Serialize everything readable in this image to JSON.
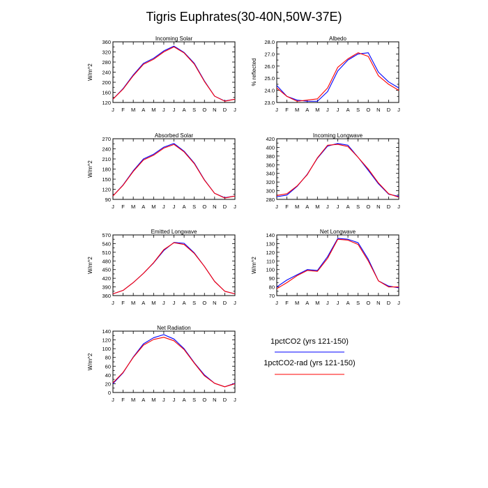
{
  "title": "Tigris Euphrates(30-40N,50W-37E)",
  "colors": {
    "series1": "#0000ff",
    "series2": "#ff0000"
  },
  "legend": {
    "placement": "bottom-right",
    "items": [
      {
        "label": "1pctCO2 (yrs 121-150)",
        "color": "#0000ff"
      },
      {
        "label": "1pctCO2-rad (yrs 121-150)",
        "color": "#ff0000"
      }
    ]
  },
  "chart_data": [
    {
      "type": "line",
      "title": "Incoming Solar",
      "xlabel": "",
      "ylabel": "W/m^2",
      "categories": [
        "J",
        "F",
        "M",
        "A",
        "M",
        "J",
        "J",
        "A",
        "S",
        "O",
        "N",
        "D",
        "J"
      ],
      "ylim": [
        120,
        360
      ],
      "yticks": [
        120,
        140,
        160,
        180,
        200,
        220,
        240,
        260,
        280,
        300,
        320,
        340,
        360
      ],
      "ytick_labels": [
        "120",
        "",
        "160",
        "",
        "200",
        "",
        "240",
        "",
        "280",
        "",
        "320",
        "",
        "360"
      ],
      "series": [
        {
          "values": [
            133,
            175,
            229,
            275,
            295,
            324,
            343,
            318,
            275,
            205,
            145,
            126,
            133
          ]
        },
        {
          "values": [
            133,
            173,
            226,
            271,
            291,
            320,
            340,
            316,
            272,
            203,
            145,
            125,
            133
          ]
        }
      ]
    },
    {
      "type": "line",
      "title": "Albedo",
      "xlabel": "",
      "ylabel": "% reflected",
      "categories": [
        "J",
        "F",
        "M",
        "A",
        "M",
        "J",
        "J",
        "A",
        "S",
        "O",
        "N",
        "D",
        "J"
      ],
      "ylim": [
        23.0,
        28.0
      ],
      "yticks": [
        23.0,
        23.5,
        24.0,
        24.5,
        25.0,
        25.5,
        26.0,
        26.5,
        27.0,
        27.5,
        28.0
      ],
      "ytick_labels": [
        "23.0",
        "",
        "24.0",
        "",
        "25.0",
        "",
        "26.0",
        "",
        "27.0",
        "",
        "28.0"
      ],
      "series": [
        {
          "values": [
            24.4,
            23.5,
            23.2,
            23.1,
            23.1,
            23.9,
            25.6,
            26.5,
            27.0,
            27.1,
            25.5,
            24.7,
            24.2
          ]
        },
        {
          "values": [
            24.2,
            23.5,
            23.1,
            23.2,
            23.3,
            24.2,
            25.9,
            26.6,
            27.1,
            26.8,
            25.2,
            24.5,
            24.0
          ]
        }
      ]
    },
    {
      "type": "line",
      "title": "Absorbed Solar",
      "xlabel": "",
      "ylabel": "W/m^2",
      "categories": [
        "J",
        "F",
        "M",
        "A",
        "M",
        "J",
        "J",
        "A",
        "S",
        "O",
        "N",
        "D",
        "J"
      ],
      "ylim": [
        90,
        270
      ],
      "yticks": [
        90,
        105,
        120,
        135,
        150,
        165,
        180,
        195,
        210,
        225,
        240,
        255,
        270
      ],
      "ytick_labels": [
        "90",
        "",
        "120",
        "",
        "150",
        "",
        "180",
        "",
        "210",
        "",
        "240",
        "",
        "270"
      ],
      "series": [
        {
          "values": [
            100,
            133,
            175,
            210,
            224,
            245,
            256,
            233,
            198,
            148,
            108,
            95,
            100
          ]
        },
        {
          "values": [
            100,
            132,
            173,
            207,
            221,
            242,
            253,
            231,
            196,
            147,
            108,
            94,
            100
          ]
        }
      ]
    },
    {
      "type": "line",
      "title": "Incoming Longwave",
      "xlabel": "",
      "ylabel": "",
      "categories": [
        "J",
        "F",
        "M",
        "A",
        "M",
        "J",
        "J",
        "A",
        "S",
        "O",
        "N",
        "D",
        "J"
      ],
      "ylim": [
        280,
        420
      ],
      "yticks": [
        280,
        290,
        300,
        310,
        320,
        330,
        340,
        350,
        360,
        370,
        380,
        390,
        400,
        410,
        420
      ],
      "ytick_labels": [
        "280",
        "",
        "300",
        "",
        "320",
        "",
        "340",
        "",
        "360",
        "",
        "380",
        "",
        "400",
        "",
        "420"
      ],
      "series": [
        {
          "values": [
            286,
            290,
            310,
            338,
            375,
            403,
            409,
            405,
            377,
            347,
            316,
            292,
            287
          ]
        },
        {
          "values": [
            289,
            293,
            311,
            337,
            376,
            405,
            407,
            402,
            377,
            350,
            318,
            293,
            285
          ]
        }
      ]
    },
    {
      "type": "line",
      "title": "Emitted Longwave",
      "xlabel": "",
      "ylabel": "W/m^2",
      "categories": [
        "J",
        "F",
        "M",
        "A",
        "M",
        "J",
        "J",
        "A",
        "S",
        "O",
        "N",
        "D",
        "J"
      ],
      "ylim": [
        360,
        570
      ],
      "yticks": [
        360,
        375,
        390,
        405,
        420,
        435,
        450,
        465,
        480,
        495,
        510,
        525,
        540,
        555,
        570
      ],
      "ytick_labels": [
        "360",
        "",
        "390",
        "",
        "420",
        "",
        "450",
        "",
        "480",
        "",
        "510",
        "",
        "540",
        "",
        "570"
      ],
      "series": [
        {
          "values": [
            366,
            378,
            405,
            437,
            473,
            516,
            544,
            541,
            508,
            461,
            409,
            375,
            366
          ]
        },
        {
          "values": [
            366,
            378,
            405,
            437,
            474,
            519,
            543,
            537,
            506,
            461,
            409,
            375,
            366
          ]
        }
      ]
    },
    {
      "type": "line",
      "title": "Net Longwave",
      "xlabel": "",
      "ylabel": "W/m^2",
      "categories": [
        "J",
        "F",
        "M",
        "A",
        "M",
        "J",
        "J",
        "A",
        "S",
        "O",
        "N",
        "D",
        "J"
      ],
      "ylim": [
        70,
        140
      ],
      "yticks": [
        70,
        75,
        80,
        85,
        90,
        95,
        100,
        105,
        110,
        115,
        120,
        125,
        130,
        135,
        140
      ],
      "ytick_labels": [
        "70",
        "",
        "80",
        "",
        "90",
        "",
        "100",
        "",
        "110",
        "",
        "120",
        "",
        "130",
        "",
        "140"
      ],
      "series": [
        {
          "values": [
            80,
            88,
            94,
            100,
            99,
            115,
            136,
            135,
            131,
            112,
            87,
            81,
            79
          ]
        },
        {
          "values": [
            78,
            85,
            93,
            99,
            98,
            113,
            135,
            134,
            129,
            110,
            87,
            80,
            80
          ]
        }
      ]
    },
    {
      "type": "line",
      "title": "Net Radiation",
      "xlabel": "",
      "ylabel": "W/m^2",
      "categories": [
        "J",
        "F",
        "M",
        "A",
        "M",
        "J",
        "J",
        "A",
        "S",
        "O",
        "N",
        "D",
        "J"
      ],
      "ylim": [
        0,
        140
      ],
      "yticks": [
        0,
        10,
        20,
        30,
        40,
        50,
        60,
        70,
        80,
        90,
        100,
        110,
        120,
        130,
        140
      ],
      "ytick_labels": [
        "0",
        "",
        "20",
        "",
        "40",
        "",
        "60",
        "",
        "80",
        "",
        "100",
        "",
        "120",
        "",
        "140"
      ],
      "series": [
        {
          "values": [
            20,
            45,
            81,
            111,
            125,
            132,
            122,
            100,
            68,
            40,
            21,
            13,
            21
          ]
        },
        {
          "values": [
            22,
            46,
            80,
            108,
            121,
            126,
            118,
            98,
            67,
            38,
            21,
            13,
            20
          ]
        }
      ]
    }
  ]
}
